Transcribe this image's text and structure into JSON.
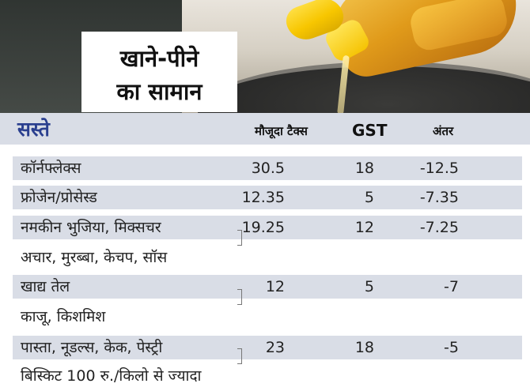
{
  "title": {
    "line1": "खाने-पीने",
    "line2": "का सामान"
  },
  "header": {
    "label": "सस्ते",
    "current_tax": "मौजूदा टैक्स",
    "gst": "GST",
    "difference": "अंतर"
  },
  "rows": [
    {
      "name": "कॉर्नफ्लेक्स",
      "current": "30.5",
      "gst": "18",
      "diff": "-12.5"
    },
    {
      "name": "फ्रोजेन/प्रोसेस्ड",
      "current": "12.35",
      "gst": "5",
      "diff": "-7.35"
    },
    {
      "name": "नमकीन भुजिया, मिक्सचर",
      "current": "19.25",
      "gst": "12",
      "diff": "-7.25"
    },
    {
      "name": "अचार, मुरब्बा, केचप, सॉस",
      "current": "",
      "gst": "",
      "diff": ""
    },
    {
      "name": "खाद्य तेल",
      "current": "12",
      "gst": "5",
      "diff": "-7"
    },
    {
      "name": "काजू, किशमिश",
      "current": "",
      "gst": "",
      "diff": ""
    },
    {
      "name": "पास्ता, नूडल्स, केक, पेस्ट्री",
      "current": "23",
      "gst": "18",
      "diff": "-5"
    },
    {
      "name": "बिस्किट 100 रु./किलो से ज्यादा",
      "current": "",
      "gst": "",
      "diff": ""
    }
  ],
  "colors": {
    "header_label": "#2a3f8f",
    "row_shade": "#d9dde6",
    "cap_yellow": "#f7c600"
  }
}
